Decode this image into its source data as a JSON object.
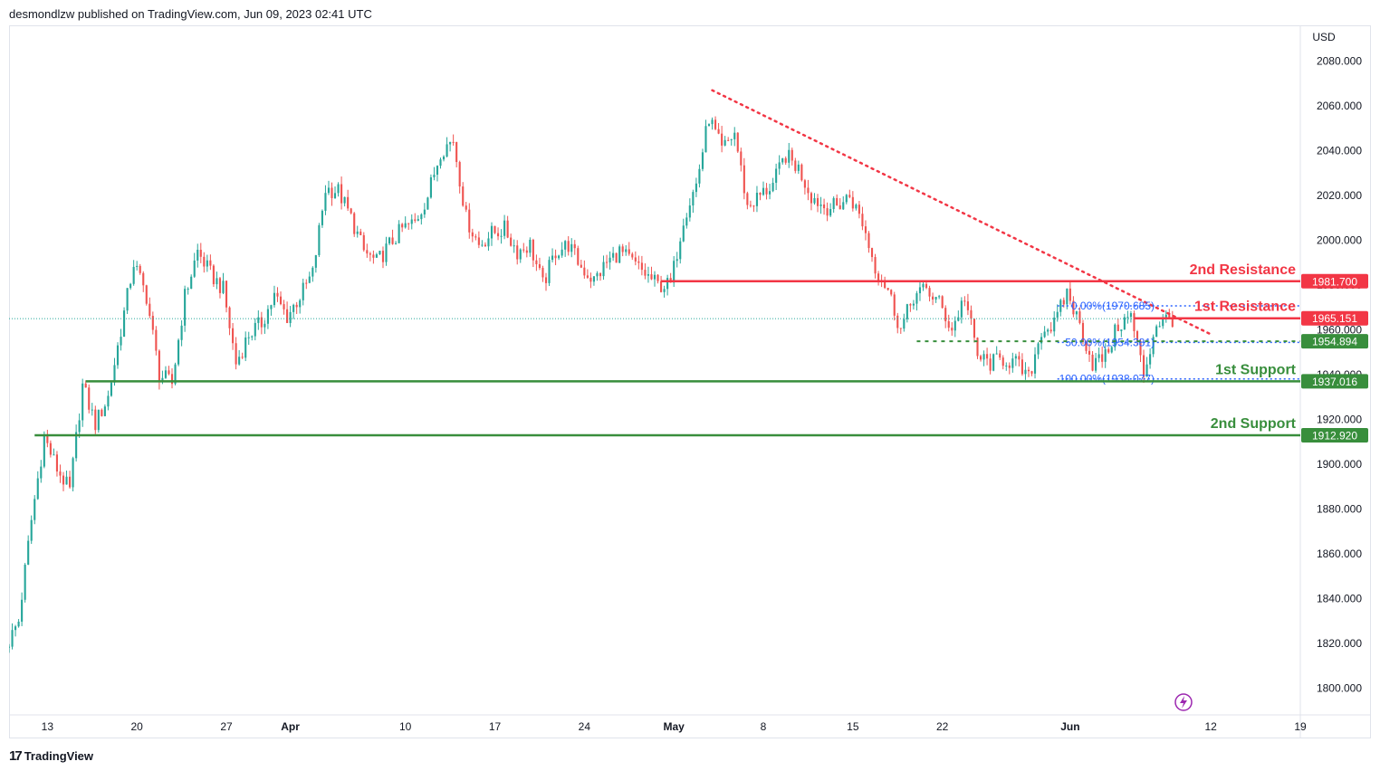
{
  "header": {
    "published_text": "desmondlzw published on TradingView.com, Jun 09, 2023 02:41 UTC"
  },
  "footer": {
    "brand_label": "TradingView",
    "logo_icon": "tradingview-logo-icon"
  },
  "colors": {
    "up": "#26a69a",
    "down": "#ef5350",
    "resistance": "#f23645",
    "support": "#388e3c",
    "fib": "#2962ff",
    "grid": "#ffffff",
    "axis_text": "#131722",
    "frame": "#e0e3eb"
  },
  "chart_data": {
    "type": "candlestick",
    "currency_label": "USD",
    "ylim": [
      1788,
      2096
    ],
    "y_ticks": [
      1800,
      1820,
      1840,
      1860,
      1880,
      1900,
      1920,
      1940,
      1960,
      1980,
      2000,
      2020,
      2040,
      2060,
      2080
    ],
    "y_tick_labels": [
      "1800.000",
      "1820.000",
      "1840.000",
      "1860.000",
      "1880.000",
      "1900.000",
      "1920.000",
      "1940.000",
      "1960.000",
      "1980.000",
      "2000.000",
      "2020.000",
      "2040.000",
      "2060.000",
      "2080.000"
    ],
    "x_start": "2023-03-10",
    "x_end": "2023-06-19",
    "x_ticks": [
      {
        "date": "2023-03-13",
        "label": "13"
      },
      {
        "date": "2023-03-20",
        "label": "20"
      },
      {
        "date": "2023-03-27",
        "label": "27"
      },
      {
        "date": "2023-04-01",
        "label": "Apr"
      },
      {
        "date": "2023-04-10",
        "label": "10"
      },
      {
        "date": "2023-04-17",
        "label": "17"
      },
      {
        "date": "2023-04-24",
        "label": "24"
      },
      {
        "date": "2023-05-01",
        "label": "May"
      },
      {
        "date": "2023-05-08",
        "label": "8"
      },
      {
        "date": "2023-05-15",
        "label": "15"
      },
      {
        "date": "2023-05-22",
        "label": "22"
      },
      {
        "date": "2023-06-01",
        "label": "Jun"
      },
      {
        "date": "2023-06-12",
        "label": "12"
      },
      {
        "date": "2023-06-19",
        "label": "19"
      }
    ],
    "price_path": [
      [
        "2023-03-10",
        1818
      ],
      [
        "2023-03-11",
        1830
      ],
      [
        "2023-03-12",
        1875
      ],
      [
        "2023-03-13",
        1912
      ],
      [
        "2023-03-14",
        1898
      ],
      [
        "2023-03-15",
        1888
      ],
      [
        "2023-03-16",
        1935
      ],
      [
        "2023-03-17",
        1918
      ],
      [
        "2023-03-18",
        1930
      ],
      [
        "2023-03-19",
        1960
      ],
      [
        "2023-03-20",
        1990
      ],
      [
        "2023-03-21",
        1975
      ],
      [
        "2023-03-22",
        1940
      ],
      [
        "2023-03-23",
        1936
      ],
      [
        "2023-03-24",
        1975
      ],
      [
        "2023-03-25",
        1995
      ],
      [
        "2023-03-26",
        1985
      ],
      [
        "2023-03-27",
        1978
      ],
      [
        "2023-03-28",
        1945
      ],
      [
        "2023-03-29",
        1958
      ],
      [
        "2023-03-30",
        1963
      ],
      [
        "2023-03-31",
        1975
      ],
      [
        "2023-04-01",
        1966
      ],
      [
        "2023-04-02",
        1975
      ],
      [
        "2023-04-03",
        1985
      ],
      [
        "2023-04-04",
        2023
      ],
      [
        "2023-04-05",
        2022
      ],
      [
        "2023-04-06",
        2010
      ],
      [
        "2023-04-07",
        1995
      ],
      [
        "2023-04-08",
        1990
      ],
      [
        "2023-04-09",
        1998
      ],
      [
        "2023-04-10",
        2005
      ],
      [
        "2023-04-11",
        2008
      ],
      [
        "2023-04-12",
        2020
      ],
      [
        "2023-04-13",
        2040
      ],
      [
        "2023-04-14",
        2045
      ],
      [
        "2023-04-15",
        2010
      ],
      [
        "2023-04-16",
        1998
      ],
      [
        "2023-04-17",
        2003
      ],
      [
        "2023-04-18",
        2005
      ],
      [
        "2023-04-19",
        1995
      ],
      [
        "2023-04-20",
        1998
      ],
      [
        "2023-04-21",
        1980
      ],
      [
        "2023-04-22",
        1995
      ],
      [
        "2023-04-23",
        1998
      ],
      [
        "2023-04-24",
        1988
      ],
      [
        "2023-04-25",
        1982
      ],
      [
        "2023-04-26",
        1990
      ],
      [
        "2023-04-27",
        1995
      ],
      [
        "2023-04-28",
        1990
      ],
      [
        "2023-04-29",
        1985
      ],
      [
        "2023-04-30",
        1980
      ],
      [
        "2023-05-01",
        1980
      ],
      [
        "2023-05-02",
        2010
      ],
      [
        "2023-05-03",
        2025
      ],
      [
        "2023-05-04",
        2055
      ],
      [
        "2023-05-05",
        2040
      ],
      [
        "2023-05-06",
        2048
      ],
      [
        "2023-05-07",
        2015
      ],
      [
        "2023-05-08",
        2020
      ],
      [
        "2023-05-09",
        2025
      ],
      [
        "2023-05-10",
        2038
      ],
      [
        "2023-05-11",
        2032
      ],
      [
        "2023-05-12",
        2020
      ],
      [
        "2023-05-13",
        2015
      ],
      [
        "2023-05-14",
        2015
      ],
      [
        "2023-05-15",
        2020
      ],
      [
        "2023-05-16",
        2008
      ],
      [
        "2023-05-17",
        1988
      ],
      [
        "2023-05-18",
        1978
      ],
      [
        "2023-05-19",
        1960
      ],
      [
        "2023-05-20",
        1975
      ],
      [
        "2023-05-21",
        1978
      ],
      [
        "2023-05-22",
        1972
      ],
      [
        "2023-05-23",
        1960
      ],
      [
        "2023-05-24",
        1975
      ],
      [
        "2023-05-25",
        1948
      ],
      [
        "2023-05-26",
        1945
      ],
      [
        "2023-05-27",
        1947
      ],
      [
        "2023-05-28",
        1945
      ],
      [
        "2023-05-29",
        1938
      ],
      [
        "2023-05-30",
        1960
      ],
      [
        "2023-05-31",
        1962
      ],
      [
        "2023-06-01",
        1977
      ],
      [
        "2023-06-02",
        1962
      ],
      [
        "2023-06-03",
        1945
      ],
      [
        "2023-06-04",
        1948
      ],
      [
        "2023-06-05",
        1962
      ],
      [
        "2023-06-06",
        1966
      ],
      [
        "2023-06-07",
        1940
      ],
      [
        "2023-06-08",
        1963
      ],
      [
        "2023-06-09",
        1965
      ]
    ],
    "levels": [
      {
        "name": "2nd Resistance",
        "value": 1981.7,
        "label": "1981.700",
        "kind": "resistance",
        "line_start": "2023-04-30"
      },
      {
        "name": "1st Resistance",
        "value": 1965.151,
        "label": "1965.151",
        "kind": "resistance",
        "line_start": "2023-06-06"
      },
      {
        "name": "",
        "value": 1954.894,
        "label": "1954.894",
        "kind": "support_dashed",
        "line_start": "2023-05-20"
      },
      {
        "name": "1st Support",
        "value": 1937.016,
        "label": "1937.016",
        "kind": "support",
        "line_start": "2023-03-16"
      },
      {
        "name": "2nd Support",
        "value": 1912.92,
        "label": "1912.920",
        "kind": "support",
        "line_start": "2023-03-12"
      }
    ],
    "fibonacci": [
      {
        "label": "0.00%(1970.685)",
        "value": 1970.685
      },
      {
        "label": "50.00%(1954.381)",
        "value": 1954.381
      },
      {
        "label": "100.00%(1938.077)",
        "value": 1938.077
      }
    ],
    "fib_start": "2023-05-31",
    "trendline": {
      "from": [
        "2023-05-04",
        2067
      ],
      "to": [
        "2023-06-12",
        1958
      ]
    },
    "last_price": 1965
  }
}
